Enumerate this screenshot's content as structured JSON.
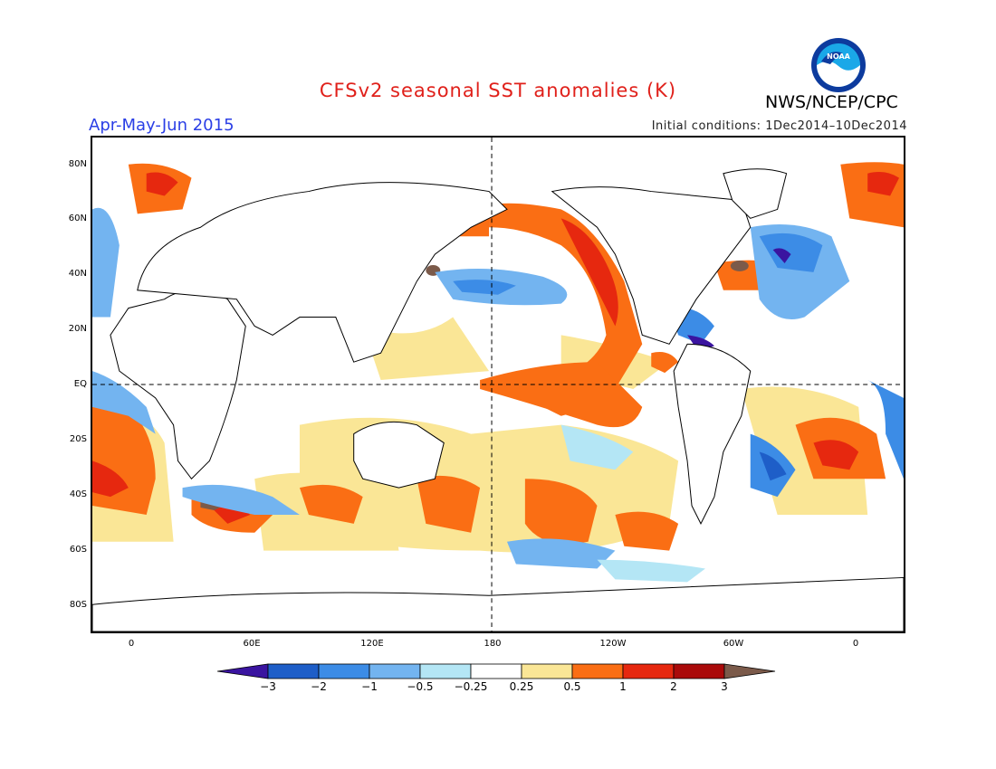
{
  "title": "CFSv2 seasonal SST anomalies (K)",
  "period": "Apr-May-Jun 2015",
  "initial_conditions": "Initial conditions: 1Dec2014–10Dec2014",
  "agency": "NWS/NCEP/CPC",
  "logo_text": "NOAA",
  "lat_labels": [
    "80N",
    "60N",
    "40N",
    "20N",
    "EQ",
    "20S",
    "40S",
    "60S",
    "80S"
  ],
  "lon_labels": [
    "0",
    "60E",
    "120E",
    "180",
    "120W",
    "60W",
    "0"
  ],
  "colorbar": {
    "labels": [
      "−3",
      "−2",
      "−1",
      "−0.5",
      "−0.25",
      "0.25",
      "0.5",
      "1",
      "2",
      "3"
    ],
    "colors": [
      "#3a14a0",
      "#1e5ec8",
      "#3c8ce6",
      "#73b4f0",
      "#b4e6f5",
      "#ffffff",
      "#fae696",
      "#fa6e14",
      "#e6280f",
      "#aa0a0a",
      "#7b5a4a"
    ]
  }
}
